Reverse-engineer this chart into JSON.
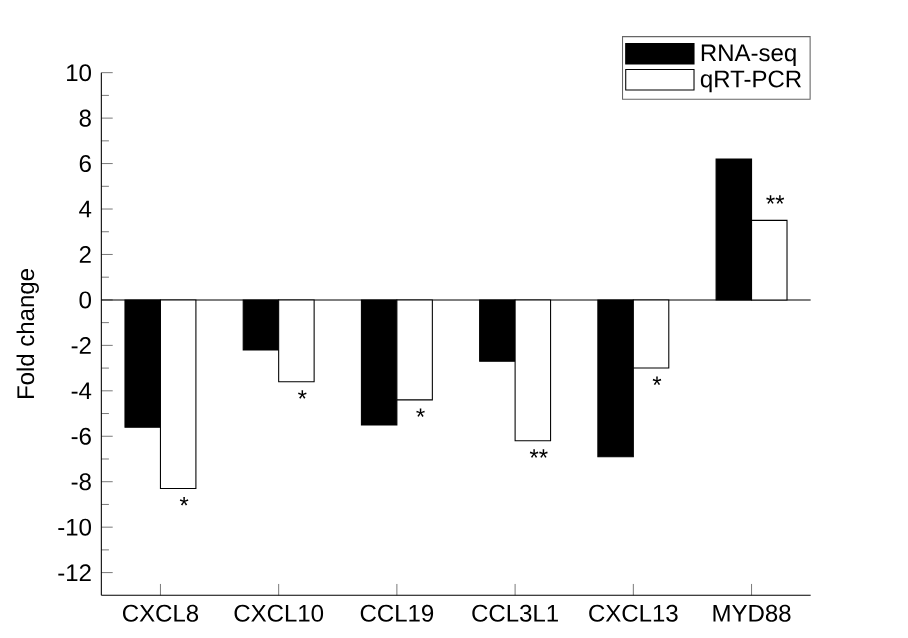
{
  "chart_data": {
    "type": "bar",
    "ylabel": "Fold change",
    "categories": [
      "CXCL8",
      "CXCL10",
      "CCL19",
      "CCL3L1",
      "CXCL13",
      "MYD88"
    ],
    "series": [
      {
        "name": "RNA-seq",
        "color": "#000000",
        "values": [
          -5.6,
          -2.2,
          -5.5,
          -2.7,
          -6.9,
          6.2
        ]
      },
      {
        "name": "qRT-PCR",
        "color": "#ffffff",
        "values": [
          -8.3,
          -3.6,
          -4.4,
          -6.2,
          -3.0,
          3.5
        ]
      }
    ],
    "ylim": [
      -13,
      10
    ],
    "yticks": [
      -12,
      -10,
      -8,
      -6,
      -4,
      -2,
      0,
      2,
      4,
      6,
      8,
      10
    ],
    "ref_lines": [
      {
        "axis": "y",
        "value": 0
      }
    ],
    "annotations": [
      "*",
      "*",
      "*",
      "**",
      "*",
      "**"
    ],
    "grid": false,
    "legend": "top right"
  }
}
